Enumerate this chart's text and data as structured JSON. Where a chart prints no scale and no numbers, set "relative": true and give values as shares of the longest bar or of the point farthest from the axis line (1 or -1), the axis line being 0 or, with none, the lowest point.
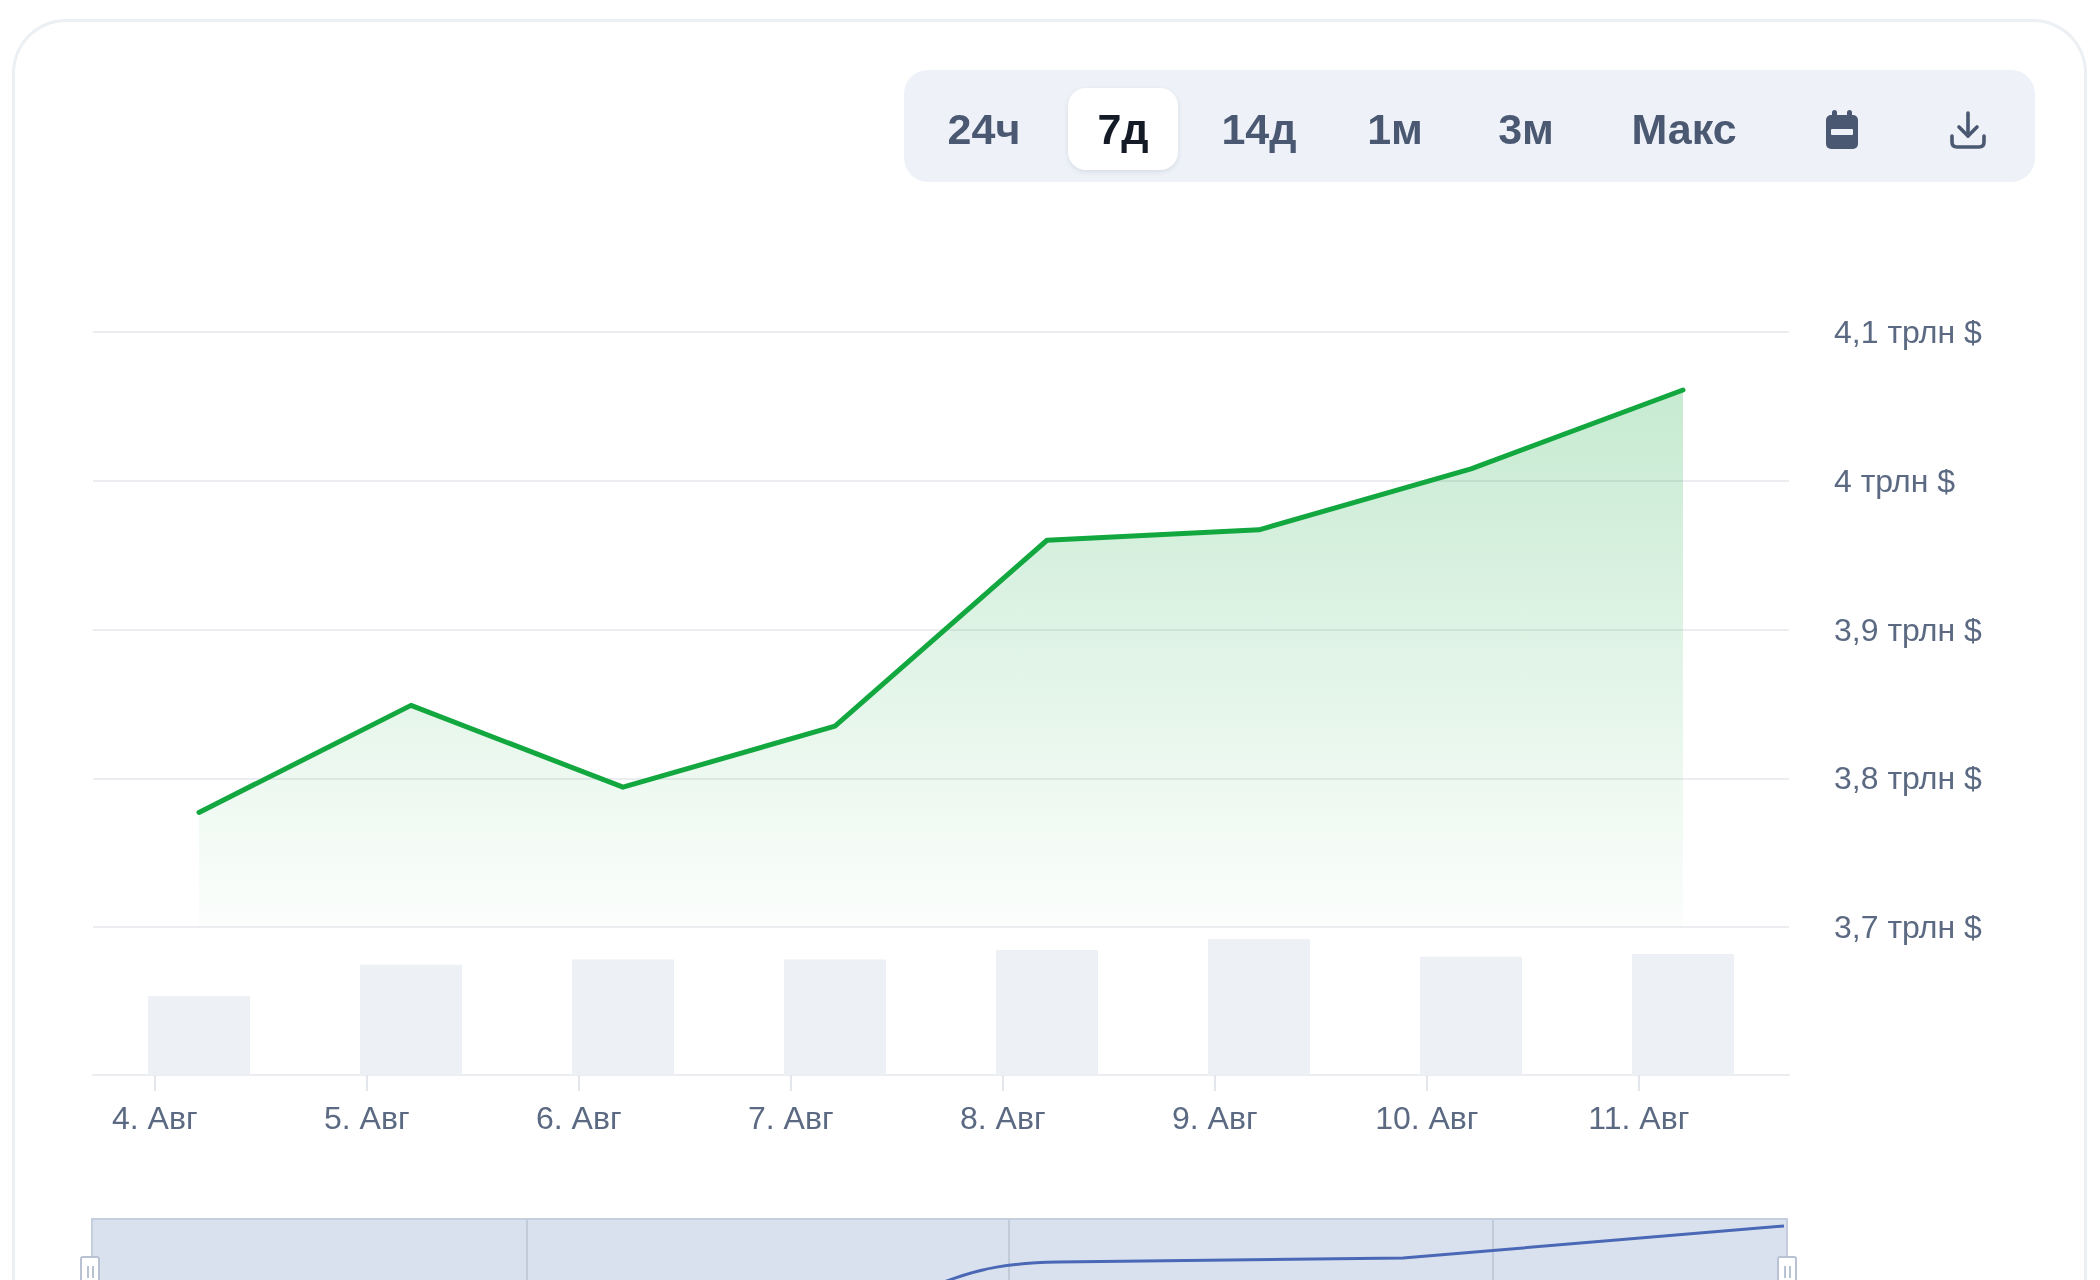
{
  "chart_data": [
    {
      "type": "area",
      "annotations": [
        "24ч",
        "7д",
        "14д",
        "1м",
        "3м",
        "Макс"
      ],
      "x": [
        "--08-04T05:00",
        "--08-05T05:00",
        "--08-06T05:00",
        "--08-07T05:00",
        "--08-08T05:00",
        "--08-09T05:00",
        "--08-10T05:00",
        "--08-11T05:00"
      ],
      "values": [
        3.777,
        3.849,
        3.794,
        3.835,
        3.96,
        3.967,
        4.008,
        4.061
      ],
      "color": "#12a83f",
      "xlim": [
        "--08-03T17:00",
        "--08-11T17:00"
      ],
      "ylim": [
        3.7,
        4.1
      ],
      "yticks": [
        {
          "value": 3.7,
          "label": "3,7 трлн $"
        },
        {
          "value": 3.8,
          "label": "3,8 трлн $"
        },
        {
          "value": 3.9,
          "label": "3,9 трлн $"
        },
        {
          "value": 4,
          "label": "4 трлн $"
        },
        {
          "value": 4.1,
          "label": "4,1 трлн $"
        }
      ],
      "grid": "y",
      "tick_labels": "y"
    },
    {
      "type": "bar",
      "relative": true,
      "x": [
        "--08-04T05:00",
        "--08-05T05:00",
        "--08-06T05:00",
        "--08-07T05:00",
        "--08-08T05:00",
        "--08-09T05:00",
        "--08-10T05:00",
        "--08-11T05:00"
      ],
      "values": [
        0.58,
        0.81,
        0.85,
        0.85,
        0.92,
        1,
        0.87,
        0.89
      ],
      "color": "#edf0f4",
      "xlim": [
        "--08-03T17:00",
        "--08-11T17:00"
      ],
      "xticks": [
        {
          "value": "--08-04",
          "label": "4. Авг"
        },
        {
          "value": "--08-05",
          "label": "5. Авг"
        },
        {
          "value": "--08-06",
          "label": "6. Авг"
        },
        {
          "value": "--08-07",
          "label": "7. Авг"
        },
        {
          "value": "--08-08",
          "label": "8. Авг"
        },
        {
          "value": "--08-09",
          "label": "9. Авг"
        },
        {
          "value": "--08-10",
          "label": "10. Авг"
        },
        {
          "value": "--08-11",
          "label": "11. Авг"
        }
      ],
      "tick_labels": "x"
    }
  ]
}
